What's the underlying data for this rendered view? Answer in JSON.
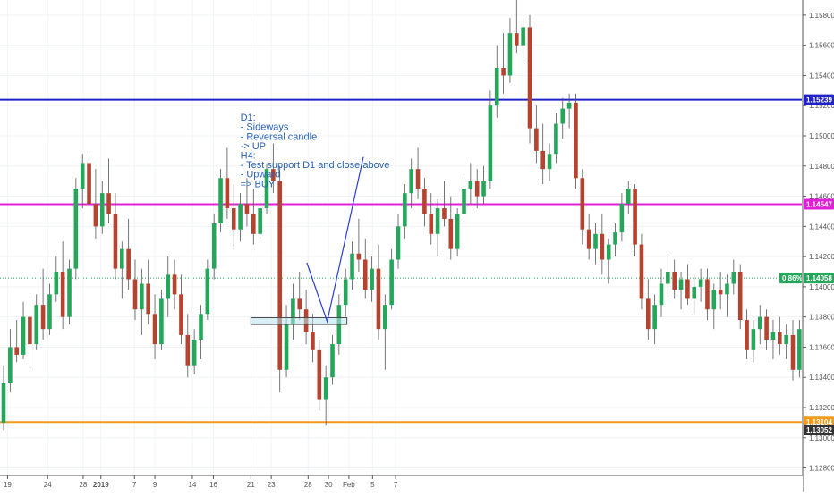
{
  "chart_data": {
    "type": "candlestick",
    "instrument_hint": "EURUSD",
    "timeframe_hint": "H4",
    "ylim": [
      1.1275,
      1.159
    ],
    "y_ticks": [
      "1.15800",
      "1.15600",
      "1.15400",
      "1.15200",
      "1.15000",
      "1.14800",
      "1.14600",
      "1.14400",
      "1.14200",
      "1.14000",
      "1.13800",
      "1.13600",
      "1.13400",
      "1.13200",
      "1.13000",
      "1.12800"
    ],
    "x_labels": [
      {
        "text": "19",
        "at": 0.6
      },
      {
        "text": "24",
        "at": 6.7
      },
      {
        "text": "28",
        "at": 12.1
      },
      {
        "text": "2019",
        "at": 14.8
      },
      {
        "text": "7",
        "at": 19.9
      },
      {
        "text": "9",
        "at": 23.0
      },
      {
        "text": "14",
        "at": 28.7
      },
      {
        "text": "16",
        "at": 31.9
      },
      {
        "text": "21",
        "at": 37.6
      },
      {
        "text": "23",
        "at": 40.7
      },
      {
        "text": "28",
        "at": 46.3
      },
      {
        "text": "30",
        "at": 49.4
      },
      {
        "text": "Feb",
        "at": 52.5
      },
      {
        "text": "5",
        "at": 56.1
      },
      {
        "text": "7",
        "at": 59.6
      }
    ],
    "candle_colors": {
      "up": "#26a65b",
      "down": "#b5432f"
    },
    "candles": [
      [
        1.131,
        1.1348,
        1.1305,
        1.1336
      ],
      [
        1.1336,
        1.1372,
        1.133,
        1.136
      ],
      [
        1.136,
        1.1378,
        1.135,
        1.1355
      ],
      [
        1.1355,
        1.139,
        1.1352,
        1.138
      ],
      [
        1.138,
        1.1392,
        1.1348,
        1.1362
      ],
      [
        1.1362,
        1.1395,
        1.1358,
        1.1388
      ],
      [
        1.1388,
        1.1412,
        1.1365,
        1.1372
      ],
      [
        1.1372,
        1.1402,
        1.1368,
        1.1395
      ],
      [
        1.1395,
        1.142,
        1.139,
        1.141
      ],
      [
        1.141,
        1.143,
        1.1372,
        1.138
      ],
      [
        1.138,
        1.1418,
        1.1375,
        1.1412
      ],
      [
        1.1412,
        1.1472,
        1.1405,
        1.1465
      ],
      [
        1.1465,
        1.1488,
        1.1452,
        1.1482
      ],
      [
        1.1482,
        1.1488,
        1.1448,
        1.1455
      ],
      [
        1.1455,
        1.1478,
        1.1432,
        1.144
      ],
      [
        1.144,
        1.147,
        1.1435,
        1.1462
      ],
      [
        1.1462,
        1.1485,
        1.1442,
        1.1448
      ],
      [
        1.1448,
        1.1462,
        1.1405,
        1.1412
      ],
      [
        1.1412,
        1.143,
        1.1392,
        1.1425
      ],
      [
        1.1425,
        1.1445,
        1.1398,
        1.1405
      ],
      [
        1.1405,
        1.1418,
        1.1378,
        1.1385
      ],
      [
        1.1385,
        1.1412,
        1.1368,
        1.1402
      ],
      [
        1.1402,
        1.1418,
        1.1375,
        1.1382
      ],
      [
        1.1382,
        1.1395,
        1.1352,
        1.1362
      ],
      [
        1.1362,
        1.1398,
        1.1358,
        1.1392
      ],
      [
        1.1392,
        1.142,
        1.138,
        1.1408
      ],
      [
        1.1408,
        1.1418,
        1.1385,
        1.1395
      ],
      [
        1.1395,
        1.1408,
        1.1362,
        1.1368
      ],
      [
        1.1368,
        1.1382,
        1.134,
        1.1348
      ],
      [
        1.1348,
        1.1372,
        1.1342,
        1.1365
      ],
      [
        1.1365,
        1.1388,
        1.1352,
        1.1382
      ],
      [
        1.1382,
        1.1418,
        1.1378,
        1.1412
      ],
      [
        1.1412,
        1.1448,
        1.1405,
        1.1442
      ],
      [
        1.1442,
        1.1478,
        1.1436,
        1.1472
      ],
      [
        1.1472,
        1.1492,
        1.1445,
        1.1452
      ],
      [
        1.1452,
        1.1468,
        1.1425,
        1.1438
      ],
      [
        1.1438,
        1.1462,
        1.143,
        1.1455
      ],
      [
        1.1455,
        1.1472,
        1.144,
        1.1448
      ],
      [
        1.1448,
        1.1465,
        1.1428,
        1.1435
      ],
      [
        1.1435,
        1.1458,
        1.1432,
        1.1452
      ],
      [
        1.1452,
        1.1482,
        1.1448,
        1.1478
      ],
      [
        1.1478,
        1.1495,
        1.1462,
        1.147
      ],
      [
        1.147,
        1.148,
        1.133,
        1.1345
      ],
      [
        1.1345,
        1.1388,
        1.134,
        1.1375
      ],
      [
        1.1375,
        1.1402,
        1.1365,
        1.1392
      ],
      [
        1.1392,
        1.141,
        1.1378,
        1.1385
      ],
      [
        1.1385,
        1.1398,
        1.1362,
        1.137
      ],
      [
        1.137,
        1.1382,
        1.135,
        1.1358
      ],
      [
        1.1358,
        1.1365,
        1.1318,
        1.1325
      ],
      [
        1.1325,
        1.1348,
        1.1308,
        1.134
      ],
      [
        1.134,
        1.1368,
        1.1335,
        1.1362
      ],
      [
        1.1362,
        1.1395,
        1.1355,
        1.1388
      ],
      [
        1.1388,
        1.1412,
        1.138,
        1.1405
      ],
      [
        1.1405,
        1.143,
        1.1398,
        1.1422
      ],
      [
        1.1422,
        1.1445,
        1.141,
        1.1418
      ],
      [
        1.1418,
        1.1432,
        1.1392,
        1.1398
      ],
      [
        1.1398,
        1.142,
        1.139,
        1.1412
      ],
      [
        1.1412,
        1.1428,
        1.1365,
        1.1372
      ],
      [
        1.1372,
        1.1395,
        1.1345,
        1.1388
      ],
      [
        1.1388,
        1.1425,
        1.1385,
        1.1418
      ],
      [
        1.1418,
        1.1448,
        1.1412,
        1.144
      ],
      [
        1.144,
        1.1468,
        1.1432,
        1.1462
      ],
      [
        1.1462,
        1.1485,
        1.1452,
        1.1478
      ],
      [
        1.1478,
        1.1492,
        1.1458,
        1.1465
      ],
      [
        1.1465,
        1.1472,
        1.144,
        1.1448
      ],
      [
        1.1448,
        1.1462,
        1.1428,
        1.1435
      ],
      [
        1.1435,
        1.1458,
        1.142,
        1.1452
      ],
      [
        1.1452,
        1.147,
        1.144,
        1.1445
      ],
      [
        1.1445,
        1.146,
        1.1418,
        1.1425
      ],
      [
        1.1425,
        1.1452,
        1.142,
        1.1448
      ],
      [
        1.1448,
        1.1475,
        1.1445,
        1.1465
      ],
      [
        1.1465,
        1.1482,
        1.1455,
        1.147
      ],
      [
        1.147,
        1.1478,
        1.1452,
        1.146
      ],
      [
        1.146,
        1.148,
        1.1455,
        1.147
      ],
      [
        1.147,
        1.153,
        1.1465,
        1.152
      ],
      [
        1.152,
        1.156,
        1.1512,
        1.1545
      ],
      [
        1.1545,
        1.1568,
        1.1528,
        1.154
      ],
      [
        1.154,
        1.1578,
        1.1535,
        1.1568
      ],
      [
        1.1568,
        1.1592,
        1.1555,
        1.156
      ],
      [
        1.156,
        1.1578,
        1.1548,
        1.1572
      ],
      [
        1.1572,
        1.158,
        1.1495,
        1.1505
      ],
      [
        1.1505,
        1.152,
        1.1482,
        1.149
      ],
      [
        1.149,
        1.1508,
        1.1468,
        1.1478
      ],
      [
        1.1478,
        1.1495,
        1.147,
        1.1488
      ],
      [
        1.1488,
        1.1515,
        1.1482,
        1.1508
      ],
      [
        1.1508,
        1.1525,
        1.1498,
        1.1518
      ],
      [
        1.1518,
        1.1528,
        1.1505,
        1.1522
      ],
      [
        1.1522,
        1.1528,
        1.1465,
        1.1472
      ],
      [
        1.1472,
        1.1478,
        1.1428,
        1.1438
      ],
      [
        1.1438,
        1.1448,
        1.1418,
        1.1425
      ],
      [
        1.1425,
        1.1442,
        1.1415,
        1.1435
      ],
      [
        1.1435,
        1.1448,
        1.1408,
        1.1418
      ],
      [
        1.1418,
        1.1432,
        1.1402,
        1.1428
      ],
      [
        1.1428,
        1.1442,
        1.142,
        1.1436
      ],
      [
        1.1436,
        1.1462,
        1.143,
        1.1455
      ],
      [
        1.1455,
        1.147,
        1.1448,
        1.1465
      ],
      [
        1.1465,
        1.1468,
        1.142,
        1.1428
      ],
      [
        1.1428,
        1.1435,
        1.1385,
        1.1392
      ],
      [
        1.1392,
        1.1405,
        1.1365,
        1.1372
      ],
      [
        1.1372,
        1.1395,
        1.1362,
        1.1388
      ],
      [
        1.1388,
        1.1412,
        1.138,
        1.1402
      ],
      [
        1.1402,
        1.142,
        1.1395,
        1.141
      ],
      [
        1.141,
        1.1418,
        1.1392,
        1.1398
      ],
      [
        1.1398,
        1.141,
        1.1385,
        1.1405
      ],
      [
        1.1405,
        1.1415,
        1.1388,
        1.1392
      ],
      [
        1.1392,
        1.1408,
        1.1382,
        1.14
      ],
      [
        1.14,
        1.1412,
        1.139,
        1.1405
      ],
      [
        1.1405,
        1.1412,
        1.1378,
        1.1385
      ],
      [
        1.1385,
        1.1402,
        1.1372,
        1.1398
      ],
      [
        1.1398,
        1.141,
        1.1385,
        1.1395
      ],
      [
        1.1395,
        1.1408,
        1.138,
        1.1402
      ],
      [
        1.1402,
        1.1418,
        1.1395,
        1.141
      ],
      [
        1.141,
        1.1415,
        1.1372,
        1.1378
      ],
      [
        1.1378,
        1.1385,
        1.1352,
        1.1358
      ],
      [
        1.1358,
        1.1378,
        1.135,
        1.1372
      ],
      [
        1.1372,
        1.1388,
        1.1362,
        1.138
      ],
      [
        1.138,
        1.1385,
        1.1358,
        1.1365
      ],
      [
        1.1365,
        1.1378,
        1.1352,
        1.137
      ],
      [
        1.137,
        1.138,
        1.1355,
        1.1362
      ],
      [
        1.1362,
        1.1375,
        1.1352,
        1.1368
      ],
      [
        1.1368,
        1.1378,
        1.1338,
        1.1345
      ],
      [
        1.1345,
        1.1378,
        1.134,
        1.1372
      ],
      [
        1.1372,
        1.1385,
        1.136,
        1.1378
      ],
      [
        1.1378,
        1.1385,
        1.1352,
        1.1358
      ],
      [
        1.1358,
        1.1372,
        1.135,
        1.1368
      ],
      [
        1.1368,
        1.1378,
        1.1358,
        1.136
      ],
      [
        1.136,
        1.1372,
        1.1352,
        1.1368
      ],
      [
        1.1368,
        1.1395,
        1.1365,
        1.1392
      ],
      [
        1.1392,
        1.1398,
        1.137,
        1.1376
      ],
      [
        1.1376,
        1.1392,
        1.137,
        1.1385
      ],
      [
        1.1385,
        1.139,
        1.1335,
        1.134
      ],
      [
        1.134,
        1.1348,
        1.1318,
        1.1325
      ],
      [
        1.1325,
        1.1332,
        1.129,
        1.1298
      ],
      [
        1.1298,
        1.1315,
        1.1292,
        1.1308
      ],
      [
        1.1308,
        1.1335,
        1.1305,
        1.1328
      ],
      [
        1.1328,
        1.1365,
        1.1325,
        1.136
      ],
      [
        1.136,
        1.1412,
        1.1358,
        1.1405
      ],
      [
        1.1405,
        1.1418,
        1.1398,
        1.1406
      ]
    ],
    "horizontal_levels": [
      {
        "price": 1.15239,
        "label": "1.15239",
        "color": "#2121c8"
      },
      {
        "price": 1.14547,
        "label": "1.14547",
        "color": "#e020d6"
      },
      {
        "price": 1.13104,
        "label": "1.13104",
        "color": "#f29a1c"
      }
    ],
    "current_price": {
      "price": 1.14058,
      "label": "1.14058",
      "change_label": "0.86%",
      "color": "#26a65b"
    },
    "low_marker": {
      "price": 1.13052,
      "label": "1.13052",
      "color": "#333333"
    },
    "support_zone": {
      "x_from": 37.6,
      "x_to": 52.2,
      "price_top": 1.13795,
      "price_bottom": 1.13768
    },
    "projection": [
      {
        "x": 46.1,
        "price": 1.1416
      },
      {
        "x": 49.2,
        "price": 1.1377
      },
      {
        "x": 54.7,
        "price": 1.1486
      }
    ],
    "note": {
      "anchor_x": 36.0,
      "anchor_price": 1.151,
      "lines": [
        "D1:",
        "- Sideways",
        "- Reversal candle",
        "-> UP",
        "H4:",
        "- Test support D1 and close above",
        "- Upward",
        "=> BUY"
      ]
    }
  }
}
